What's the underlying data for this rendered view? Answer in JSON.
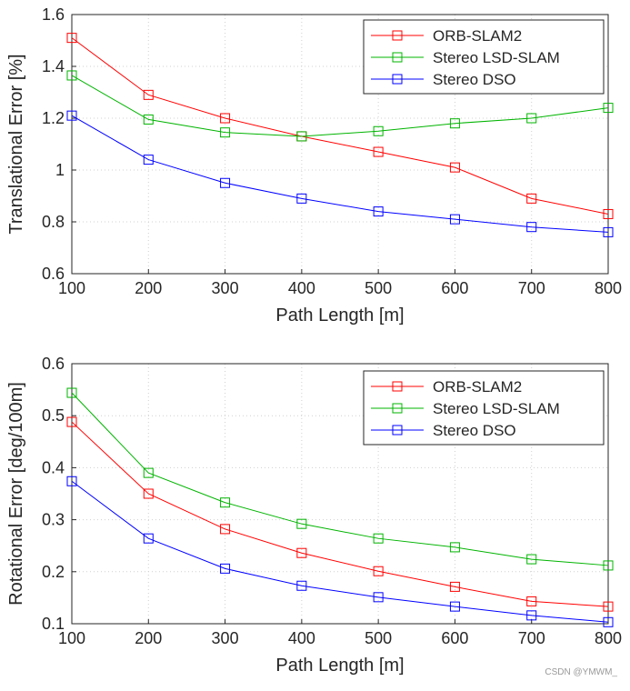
{
  "chart_data": [
    {
      "type": "line",
      "x": [
        100,
        200,
        300,
        400,
        500,
        600,
        700,
        800
      ],
      "xticks": [
        "100",
        "200",
        "300",
        "400",
        "500",
        "600",
        "700",
        "800"
      ],
      "xlim": [
        100,
        800
      ],
      "ylim": [
        0.6,
        1.6
      ],
      "yticks": [
        "0.6",
        "0.8",
        "1",
        "1.2",
        "1.4",
        "1.6"
      ],
      "xlabel": "Path Length [m]",
      "ylabel": "Translational Error [%]",
      "grid": true,
      "legend": "top-right",
      "marker": "square",
      "series": [
        {
          "name": "ORB-SLAM2",
          "color": "#ff0000",
          "values": [
            1.51,
            1.29,
            1.2,
            1.13,
            1.07,
            1.01,
            0.89,
            0.83
          ]
        },
        {
          "name": "Stereo LSD-SLAM",
          "color": "#00b400",
          "values": [
            1.365,
            1.195,
            1.145,
            1.13,
            1.15,
            1.18,
            1.2,
            1.24
          ]
        },
        {
          "name": "Stereo DSO",
          "color": "#0000ff",
          "values": [
            1.21,
            1.04,
            0.95,
            0.89,
            0.84,
            0.81,
            0.78,
            0.76
          ]
        }
      ]
    },
    {
      "type": "line",
      "x": [
        100,
        200,
        300,
        400,
        500,
        600,
        700,
        800
      ],
      "xticks": [
        "100",
        "200",
        "300",
        "400",
        "500",
        "600",
        "700",
        "800"
      ],
      "xlim": [
        100,
        800
      ],
      "ylim": [
        0.1,
        0.6
      ],
      "yticks": [
        "0.1",
        "0.2",
        "0.3",
        "0.4",
        "0.5",
        "0.6"
      ],
      "xlabel": "Path Length [m]",
      "ylabel": "Rotational Error [deg/100m]",
      "grid": true,
      "legend": "top-right",
      "marker": "square",
      "series": [
        {
          "name": "ORB-SLAM2",
          "color": "#ff0000",
          "values": [
            0.488,
            0.35,
            0.282,
            0.236,
            0.201,
            0.171,
            0.143,
            0.133
          ]
        },
        {
          "name": "Stereo LSD-SLAM",
          "color": "#00b400",
          "values": [
            0.544,
            0.39,
            0.333,
            0.292,
            0.264,
            0.247,
            0.224,
            0.212
          ]
        },
        {
          "name": "Stereo DSO",
          "color": "#0000ff",
          "values": [
            0.374,
            0.264,
            0.206,
            0.173,
            0.151,
            0.133,
            0.116,
            0.103
          ]
        }
      ]
    }
  ],
  "watermark": "CSDN @YMWM_"
}
